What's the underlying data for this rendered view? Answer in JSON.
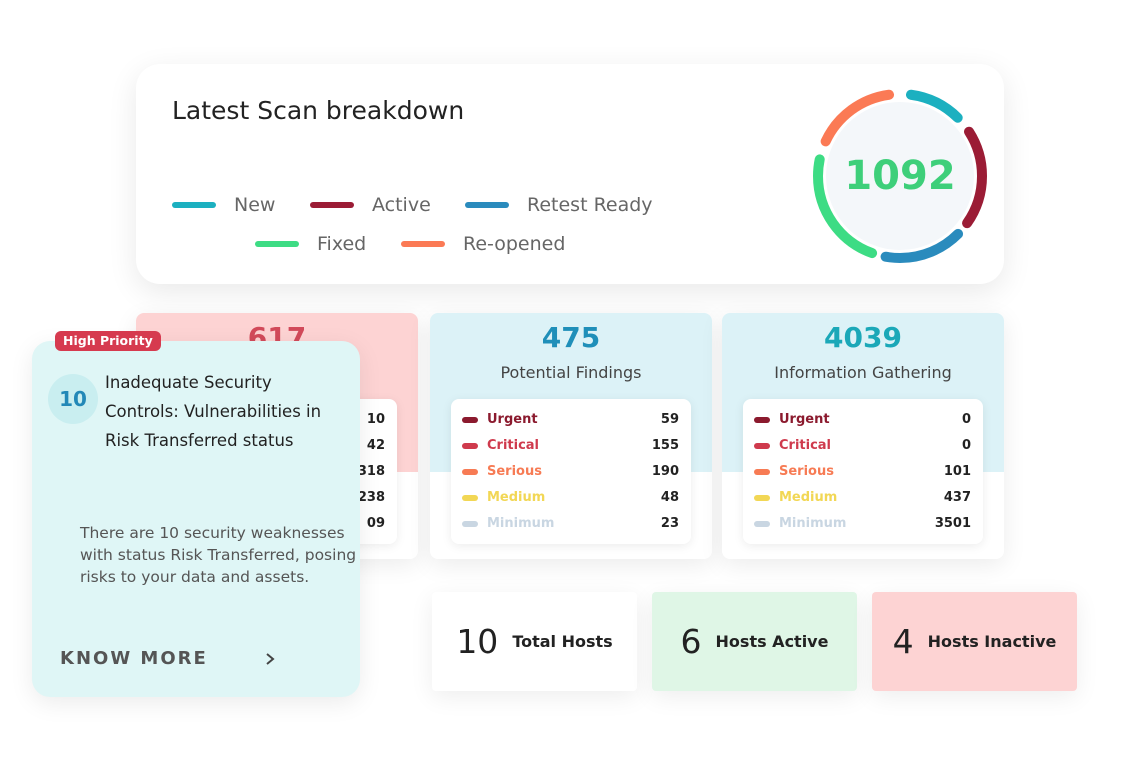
{
  "scan": {
    "title": "Latest Scan breakdown",
    "total": 1092,
    "legend": [
      {
        "name": "New",
        "color": "#1cb0c0"
      },
      {
        "name": "Active",
        "color": "#9b1c35"
      },
      {
        "name": "Retest Ready",
        "color": "#2a8bbd"
      },
      {
        "name": "Fixed",
        "color": "#3ddc84"
      },
      {
        "name": "Re-opened",
        "color": "#fb7a55"
      }
    ]
  },
  "severity_colors": {
    "Urgent": "#8b1a2e",
    "Critical": "#cf3a4d",
    "Serious": "#f77b54",
    "Medium": "#f2d755",
    "Minimum": "#c9d6e2"
  },
  "cards": [
    {
      "value": 617,
      "rows": [
        {
          "value": 10
        },
        {
          "value": 42
        },
        {
          "value": 318
        },
        {
          "value": 238
        },
        {
          "value": "09"
        }
      ]
    },
    {
      "value": 475,
      "label": "Potential Findings",
      "rows": [
        {
          "label": "Urgent",
          "value": 59
        },
        {
          "label": "Critical",
          "value": 155
        },
        {
          "label": "Serious",
          "value": 190
        },
        {
          "label": "Medium",
          "value": 48
        },
        {
          "label": "Minimum",
          "value": 23
        }
      ]
    },
    {
      "value": 4039,
      "label": "Information Gathering",
      "rows": [
        {
          "label": "Urgent",
          "value": 0
        },
        {
          "label": "Critical",
          "value": 0
        },
        {
          "label": "Serious",
          "value": 101
        },
        {
          "label": "Medium",
          "value": 437
        },
        {
          "label": "Minimum",
          "value": 3501
        }
      ]
    }
  ],
  "priority": {
    "badge": "High Priority",
    "count": 10,
    "title": "Inadequate Security Controls: Vulnerabilities in Risk Transferred status",
    "description": "There are 10 security weaknesses with status Risk Transferred, posing risks to your data and assets.",
    "link": "KNOW MORE"
  },
  "hosts": [
    {
      "value": 10,
      "label": "Total Hosts"
    },
    {
      "value": 6,
      "label": "Hosts Active"
    },
    {
      "value": 4,
      "label": "Hosts Inactive"
    }
  ]
}
